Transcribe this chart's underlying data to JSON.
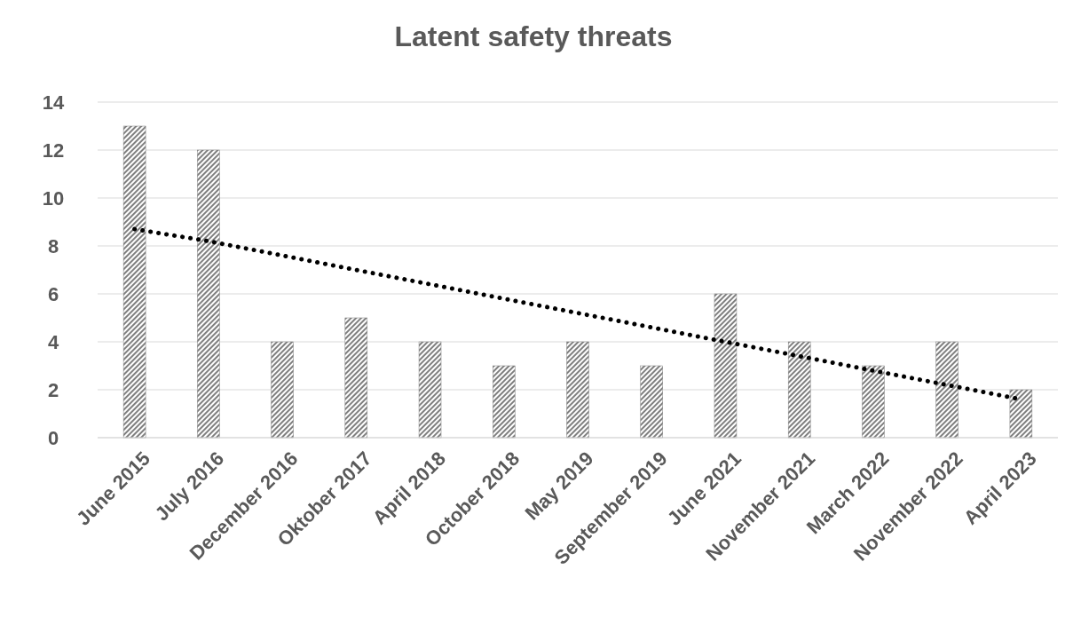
{
  "chart_data": {
    "type": "bar",
    "title": "Latent safety threats",
    "categories": [
      "June 2015",
      "July 2016",
      "December 2016",
      "Oktober 2017",
      "April 2018",
      "October 2018",
      "May 2019",
      "September 2019",
      "June 2021",
      "November 2021",
      "March 2022",
      "November 2022",
      "April 2023"
    ],
    "series": [
      {
        "color": "#7f7f7f",
        "values": [
          13,
          12,
          4,
          5,
          4,
          3,
          4,
          3,
          6,
          4,
          3,
          4,
          2
        ]
      },
      {
        "type": "line",
        "color": "#000000",
        "line_style": "dotted",
        "values": [
          8.7,
          8.2,
          7.6,
          7.0,
          6.4,
          5.8,
          5.2,
          4.6,
          4.0,
          3.4,
          2.8,
          2.2,
          1.6
        ]
      }
    ],
    "ylim": [
      0,
      14
    ],
    "yticks": [
      0,
      2,
      4,
      6,
      8,
      10,
      12,
      14
    ],
    "grid": "y"
  }
}
